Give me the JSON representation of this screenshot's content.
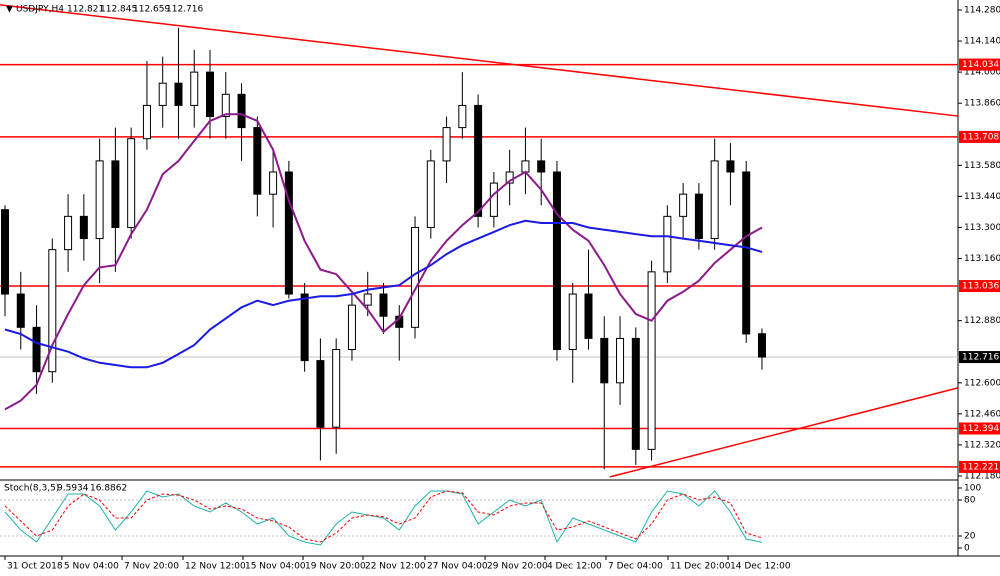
{
  "chart_data": {
    "type": "candlestick",
    "symbol": "USDJPY,H4",
    "open": [
      113.38,
      113.0,
      112.85,
      112.65,
      113.2,
      113.35,
      113.25,
      113.6,
      113.3,
      113.7,
      113.85,
      113.95,
      113.85,
      114.0,
      113.8,
      113.9,
      113.75,
      113.45,
      113.55,
      113.0,
      112.7,
      112.4,
      112.75,
      112.95,
      113.0,
      112.9,
      112.85,
      113.3,
      113.6,
      113.75,
      113.85,
      113.35,
      113.5,
      113.55,
      113.6,
      113.55,
      112.75,
      113.0,
      112.8,
      112.6,
      112.8,
      112.3,
      113.1,
      113.35,
      113.45,
      113.25,
      113.6,
      113.55,
      112.821
    ],
    "high": [
      113.4,
      113.1,
      112.95,
      113.25,
      113.45,
      113.45,
      113.7,
      113.75,
      113.75,
      114.05,
      114.07,
      114.2,
      114.1,
      114.1,
      114.0,
      113.95,
      113.8,
      113.65,
      113.6,
      113.05,
      112.8,
      112.8,
      113.0,
      113.1,
      113.05,
      112.95,
      113.35,
      113.65,
      113.8,
      114.0,
      113.9,
      113.55,
      113.65,
      113.75,
      113.7,
      113.6,
      113.05,
      113.2,
      112.9,
      112.9,
      112.85,
      113.15,
      113.4,
      113.5,
      113.5,
      113.7,
      113.68,
      113.6,
      112.845
    ],
    "low": [
      112.9,
      112.75,
      112.55,
      112.6,
      113.1,
      113.15,
      113.05,
      113.1,
      113.25,
      113.65,
      113.75,
      113.7,
      113.75,
      113.7,
      113.7,
      113.6,
      113.35,
      113.3,
      112.98,
      112.65,
      112.25,
      112.28,
      112.7,
      112.9,
      112.82,
      112.7,
      112.8,
      113.25,
      113.5,
      113.7,
      113.3,
      113.3,
      113.4,
      113.45,
      113.4,
      112.7,
      112.6,
      112.75,
      112.21,
      112.5,
      112.23,
      112.25,
      113.05,
      113.25,
      113.2,
      113.2,
      113.4,
      112.78,
      112.659
    ],
    "close": [
      113.0,
      112.85,
      112.65,
      113.2,
      113.35,
      113.25,
      113.6,
      113.3,
      113.7,
      113.85,
      113.95,
      113.85,
      114.0,
      113.8,
      113.9,
      113.75,
      113.45,
      113.55,
      113.0,
      112.7,
      112.4,
      112.75,
      112.95,
      113.0,
      112.9,
      112.85,
      113.3,
      113.6,
      113.75,
      113.85,
      113.35,
      113.5,
      113.55,
      113.6,
      113.55,
      112.75,
      113.0,
      112.8,
      112.6,
      112.8,
      112.3,
      113.1,
      113.35,
      113.45,
      113.25,
      113.6,
      113.55,
      112.82,
      112.716
    ],
    "moving_averages": [
      {
        "color": "#8b1a8b",
        "values": [
          112.48,
          112.52,
          112.59,
          112.77,
          112.91,
          113.04,
          113.12,
          113.13,
          113.27,
          113.38,
          113.54,
          113.6,
          113.69,
          113.78,
          113.81,
          113.81,
          113.78,
          113.65,
          113.42,
          113.24,
          113.11,
          113.09,
          113.01,
          112.93,
          112.83,
          112.89,
          113.02,
          113.15,
          113.24,
          113.31,
          113.37,
          113.45,
          113.51,
          113.55,
          113.47,
          113.36,
          113.29,
          113.24,
          113.13,
          113.0,
          112.91,
          112.88,
          112.97,
          113.01,
          113.06,
          113.14,
          113.2,
          113.26,
          113.3
        ]
      },
      {
        "color": "#1a1ae6",
        "values": [
          112.84,
          112.82,
          112.78,
          112.76,
          112.74,
          112.71,
          112.69,
          112.68,
          112.67,
          112.67,
          112.69,
          112.73,
          112.77,
          112.84,
          112.89,
          112.94,
          112.97,
          112.95,
          112.97,
          112.98,
          112.99,
          112.99,
          113.0,
          113.02,
          113.03,
          113.04,
          113.09,
          113.13,
          113.18,
          113.22,
          113.25,
          113.28,
          113.31,
          113.33,
          113.32,
          113.32,
          113.32,
          113.3,
          113.29,
          113.28,
          113.27,
          113.26,
          113.26,
          113.25,
          113.24,
          113.23,
          113.22,
          113.21,
          113.19
        ]
      }
    ],
    "levels": [
      114.034,
      113.708,
      113.036,
      112.394,
      112.221
    ],
    "level_color": "#ff0000",
    "trendlines": [
      {
        "x": [
          -0.317,
          60.43
        ],
        "y": [
          114.303,
          113.802
        ]
      },
      {
        "x": [
          38.36,
          60.43
        ],
        "y": [
          112.176,
          112.577
        ]
      }
    ],
    "xlim": [
      -0.317,
      60.43
    ],
    "ylim": [
      112.171,
      114.325
    ],
    "yticks": [
      {
        "value": 114.28,
        "label": "114.280"
      },
      {
        "value": 114.14,
        "label": "114.140"
      },
      {
        "value": 114.0,
        "label": "114.000"
      },
      {
        "value": 113.86,
        "label": "113.860"
      },
      {
        "value": 113.58,
        "label": "113.580"
      },
      {
        "value": 113.44,
        "label": "113.440"
      },
      {
        "value": 113.3,
        "label": "113.300"
      },
      {
        "value": 113.16,
        "label": "113.160"
      },
      {
        "value": 112.88,
        "label": "112.880"
      },
      {
        "value": 112.6,
        "label": "112.600"
      },
      {
        "value": 112.46,
        "label": "112.460"
      },
      {
        "value": 112.32,
        "label": "112.320"
      },
      {
        "value": 112.18,
        "label": "112.180"
      }
    ],
    "xticks": [
      {
        "value": 0,
        "label": "31 Oct 2018"
      },
      {
        "value": 3.61,
        "label": "5 Nov 04:00"
      },
      {
        "value": 7.42,
        "label": "7 Nov 20:00"
      },
      {
        "value": 11.29,
        "label": "12 Nov 12:00"
      },
      {
        "value": 15.09,
        "label": "15 Nov 04:00"
      },
      {
        "value": 18.9,
        "label": "19 Nov 20:00"
      },
      {
        "value": 22.7,
        "label": "22 Nov 12:00"
      },
      {
        "value": 26.63,
        "label": "27 Nov 04:00"
      },
      {
        "value": 30.44,
        "label": "29 Nov 20:00"
      },
      {
        "value": 34.24,
        "label": "4 Dec 12:00"
      },
      {
        "value": 38.11,
        "label": "7 Dec 04:00"
      },
      {
        "value": 42.04,
        "label": "11 Dec 20:00"
      },
      {
        "value": 45.85,
        "label": "14 Dec 12:00"
      }
    ],
    "indicator": {
      "type": "line",
      "label": "Stoch(8,3,5)",
      "ylim": [
        0,
        100
      ],
      "yticks": [
        0,
        20,
        80,
        100
      ],
      "levels": [
        20,
        80
      ],
      "series": [
        {
          "color": "#20b2aa",
          "values": [
            60,
            30,
            10,
            50,
            90,
            90,
            70,
            30,
            60,
            95,
            85,
            90,
            70,
            60,
            75,
            60,
            40,
            50,
            20,
            10,
            5,
            40,
            60,
            55,
            50,
            30,
            70,
            95,
            95,
            90,
            40,
            60,
            80,
            70,
            80,
            10,
            50,
            40,
            30,
            20,
            10,
            60,
            95,
            90,
            70,
            95,
            60,
            15,
            9.5934
          ]
        },
        {
          "color": "#ff0000",
          "dashed": true,
          "values": [
            70,
            45,
            20,
            30,
            70,
            90,
            80,
            50,
            50,
            80,
            90,
            88,
            80,
            65,
            70,
            65,
            50,
            45,
            35,
            15,
            10,
            25,
            50,
            55,
            52,
            40,
            50,
            85,
            95,
            92,
            60,
            55,
            70,
            75,
            75,
            30,
            35,
            45,
            35,
            25,
            15,
            40,
            80,
            90,
            80,
            85,
            75,
            25,
            16.8862
          ]
        }
      ]
    }
  }
}
